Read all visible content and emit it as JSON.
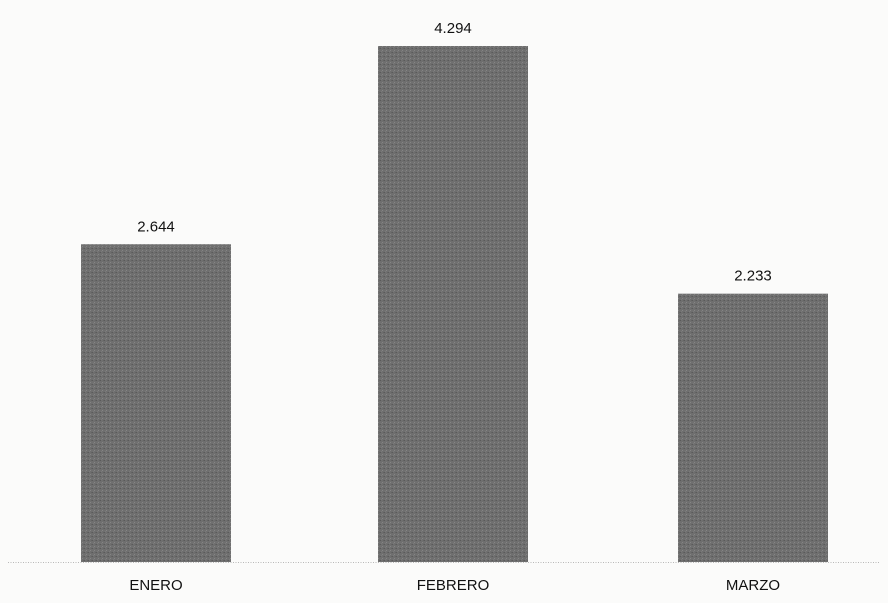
{
  "chart_data": {
    "type": "bar",
    "categories": [
      "ENERO",
      "FEBRERO",
      "MARZO"
    ],
    "values": [
      2644,
      4294,
      2233
    ],
    "data_labels": [
      "2.644",
      "4.294",
      "2.233"
    ],
    "title": "",
    "xlabel": "",
    "ylabel": "",
    "ylim": [
      0,
      4294
    ],
    "grid": false,
    "legend": "none",
    "bar_color": "#6e6e6e"
  }
}
